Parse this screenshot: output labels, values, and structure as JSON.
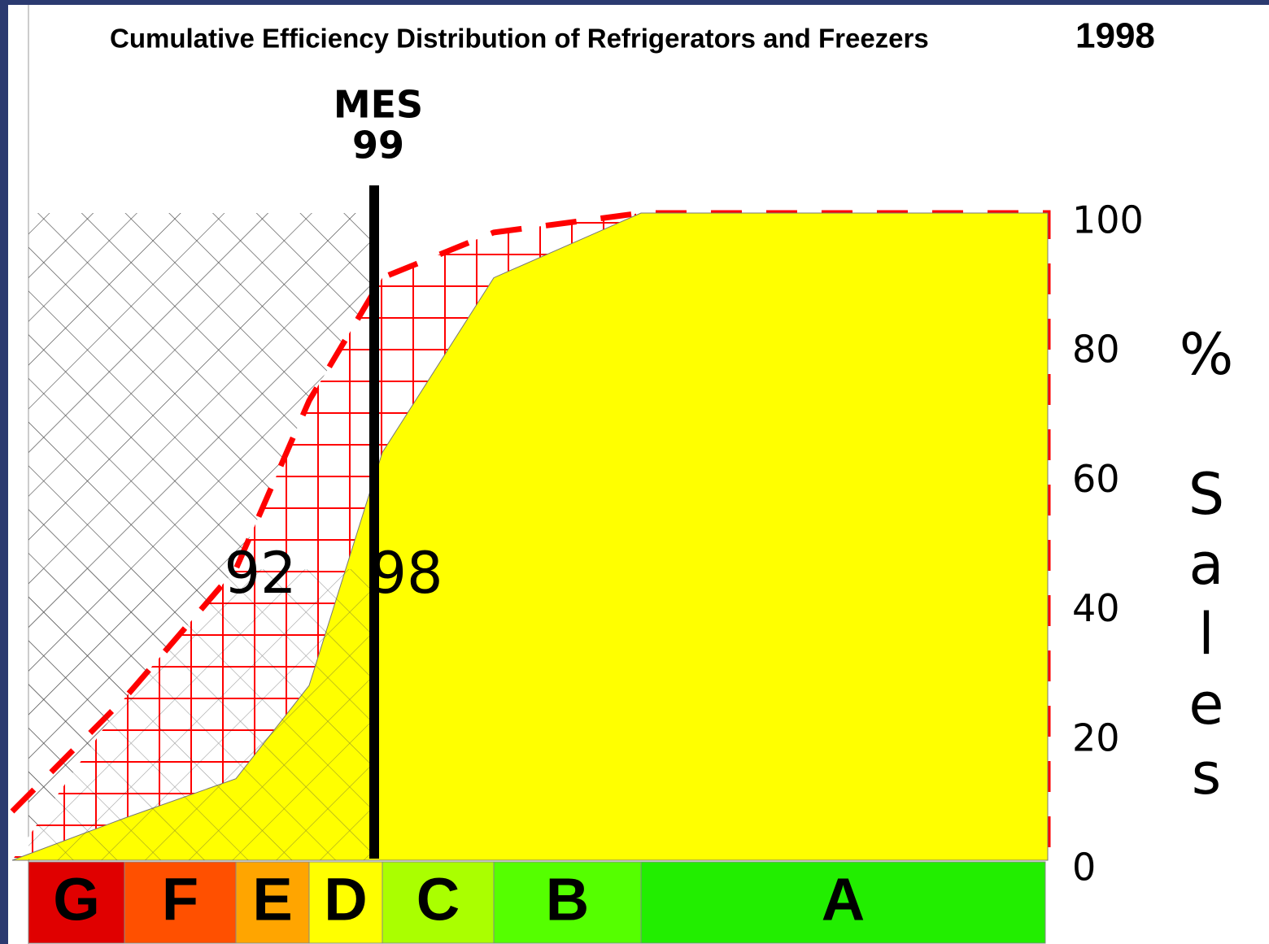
{
  "chart_data": {
    "type": "area",
    "title": "Cumulative Efficiency Distribution of Refrigerators and Freezers",
    "title_year": "1998",
    "categories": [
      "G",
      "F",
      "E",
      "D",
      "C",
      "B",
      "A"
    ],
    "category_colors": [
      "#e00000",
      "#ff5000",
      "#ffa500",
      "#ffff00",
      "#aaff00",
      "#55ff00",
      "#22ee00"
    ],
    "series": [
      {
        "name": "92",
        "color": "#ff0000",
        "values": [
          25,
          45,
          71,
          90,
          97,
          100,
          100
        ]
      },
      {
        "name": "98",
        "color": "#ffff00",
        "values": [
          6.5,
          12.6,
          27,
          63,
          90,
          100,
          100
        ]
      }
    ],
    "annotation": {
      "title": "MES",
      "value": "99"
    },
    "y_label": "% Sales",
    "ylim": [
      0,
      100
    ],
    "yticks": [
      0,
      20,
      40,
      60,
      80,
      100
    ]
  }
}
